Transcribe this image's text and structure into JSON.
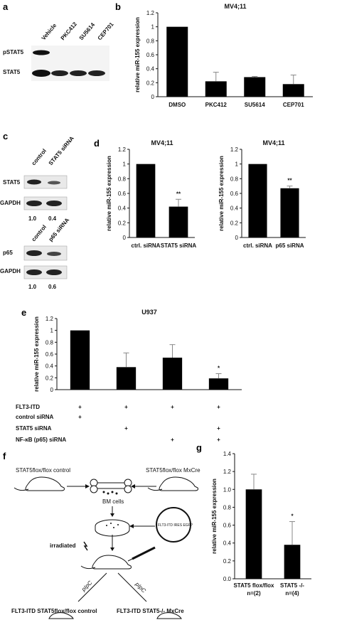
{
  "panels": {
    "a": {
      "label": "a",
      "lanes": [
        "Vehicle",
        "PKC412",
        "SU5614",
        "CEP701"
      ],
      "rows": [
        "pSTAT5",
        "STAT5"
      ]
    },
    "c": {
      "label": "c",
      "blot1": {
        "lanes": [
          "control",
          "STAT5 siRNA"
        ],
        "rows": [
          "STAT5",
          "GAPDH"
        ],
        "quant": [
          "1.0",
          "0.4"
        ]
      },
      "blot2": {
        "lanes": [
          "control",
          "p65 siRNA"
        ],
        "rows": [
          "p65",
          "GAPDH"
        ],
        "quant": [
          "1.0",
          "0.6"
        ]
      }
    },
    "f": {
      "label": "f",
      "texts": {
        "control_mouse": "STAT5flox/flox control",
        "cre_mouse": "STAT5flox/flox MxCre",
        "bm": "BM cells",
        "irradiated": "irradiated",
        "pipc_left": "pIpC",
        "pipc_right": "pIpC",
        "out_left": "FLT3-ITD STAT5flox/flox control",
        "out_right": "FLT3-ITD STAT5-/- MxCre",
        "plasmid": "FLT3-ITD  IRES  EGFP"
      }
    },
    "e_table": {
      "rows": [
        {
          "label": "FLT3-ITD",
          "marks": [
            "+",
            "+",
            "+",
            "+"
          ]
        },
        {
          "label": "control siRNA",
          "marks": [
            "+",
            "",
            "",
            ""
          ]
        },
        {
          "label": "STAT5 siRNA",
          "marks": [
            "",
            "+",
            "",
            "+"
          ]
        },
        {
          "label": "NF-κB (p65) siRNA",
          "marks": [
            "",
            "",
            "+",
            "+"
          ]
        }
      ]
    }
  },
  "chart_data": [
    {
      "panel": "b",
      "type": "bar",
      "title": "MV4;11",
      "ylabel": "relative miR-155 expression",
      "categories": [
        "DMSO",
        "PKC412",
        "SU5614",
        "CEP701"
      ],
      "values": [
        1.0,
        0.22,
        0.28,
        0.18
      ],
      "errors": [
        0,
        0.13,
        0.01,
        0.13
      ],
      "sig": [
        "",
        "",
        "",
        ""
      ],
      "ylim": [
        0,
        1.2
      ],
      "yticks": [
        "0",
        "0.2",
        "0.4",
        "0.6",
        "0.8",
        "1",
        "1.2"
      ]
    },
    {
      "panel": "d",
      "type": "bar",
      "title": "MV4;11",
      "ylabel": "relative miR-155 expression",
      "categories": [
        "ctrl. siRNA",
        "STAT5 siRNA"
      ],
      "values": [
        1.0,
        0.42
      ],
      "errors": [
        0,
        0.1
      ],
      "sig": [
        "",
        "**"
      ],
      "ylim": [
        0,
        1.2
      ],
      "yticks": [
        "0",
        "0.2",
        "0.4",
        "0.6",
        "0.8",
        "1",
        "1.2"
      ]
    },
    {
      "panel": "d2",
      "type": "bar",
      "title": "MV4;11",
      "ylabel": "relative miR-155 expression",
      "categories": [
        "ctrl. siRNA",
        "p65 siRNA"
      ],
      "values": [
        1.0,
        0.67
      ],
      "errors": [
        0,
        0.03
      ],
      "sig": [
        "",
        "**"
      ],
      "ylim": [
        0,
        1.2
      ],
      "yticks": [
        "0",
        "0.2",
        "0.4",
        "0.6",
        "0.8",
        "1",
        "1.2"
      ]
    },
    {
      "panel": "e",
      "type": "bar",
      "title": "U937",
      "ylabel": "relative miR-155 expression",
      "categories": [
        "",
        "",
        "",
        ""
      ],
      "values": [
        1.0,
        0.38,
        0.54,
        0.19
      ],
      "errors": [
        0,
        0.24,
        0.22,
        0.08
      ],
      "sig": [
        "",
        "",
        "",
        "*"
      ],
      "ylim": [
        0,
        1.2
      ],
      "yticks": [
        "0",
        "0.2",
        "0.4",
        "0.6",
        "0.8",
        "1",
        "1.2"
      ]
    },
    {
      "panel": "g",
      "type": "bar",
      "title": "",
      "ylabel": "relative miR-155 expression",
      "categories": [
        "STAT5 flox/flox",
        "STAT5 -/-"
      ],
      "subcategories": [
        "n=(2)",
        "n=(4)"
      ],
      "values": [
        1.0,
        0.38
      ],
      "errors": [
        0.17,
        0.26
      ],
      "sig": [
        "",
        "*"
      ],
      "ylim": [
        0,
        1.4
      ],
      "yticks": [
        "0.0",
        "0.2",
        "0.4",
        "0.6",
        "0.8",
        "1.0",
        "1.2",
        "1.4"
      ]
    }
  ]
}
